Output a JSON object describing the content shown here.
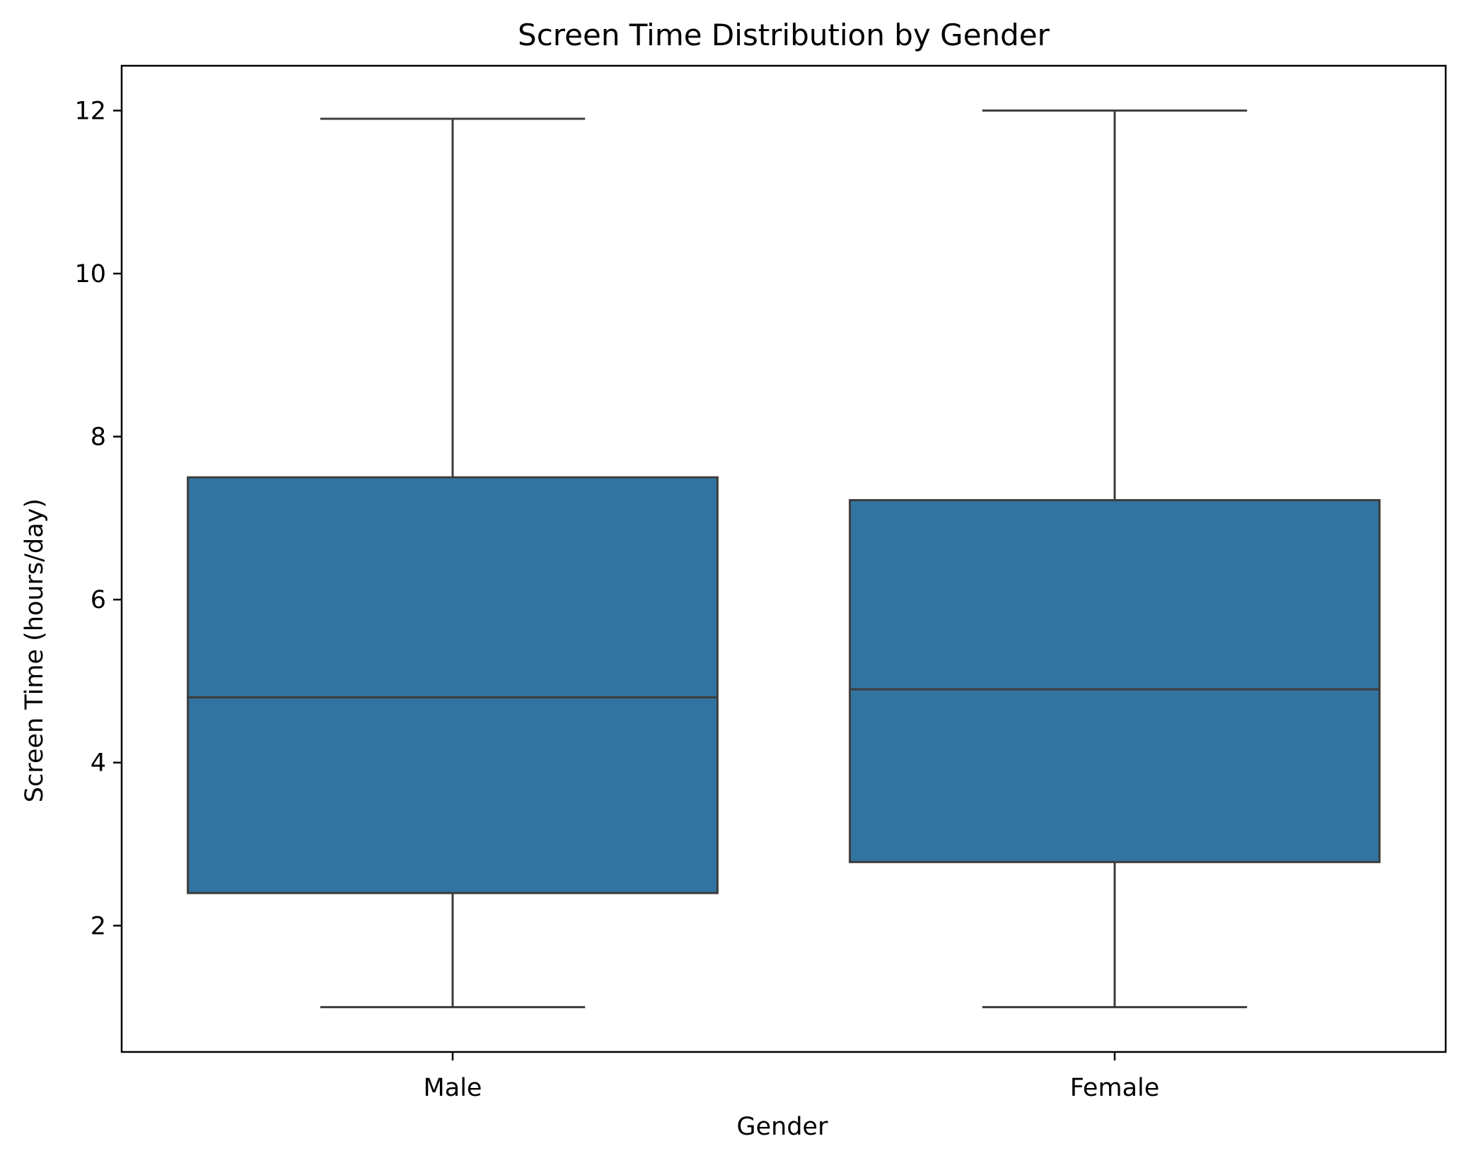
{
  "chart_data": {
    "type": "box",
    "title": "Screen Time Distribution by Gender",
    "xlabel": "Gender",
    "ylabel": "Screen Time (hours/day)",
    "ylim": [
      0.45,
      12.55
    ],
    "yticks": [
      2,
      4,
      6,
      8,
      10,
      12
    ],
    "grid": false,
    "categories": [
      "Male",
      "Female"
    ],
    "boxes": [
      {
        "category": "Male",
        "min": 1.0,
        "q1": 2.4,
        "median": 4.8,
        "q3": 7.5,
        "max": 11.9
      },
      {
        "category": "Female",
        "min": 1.0,
        "q1": 2.78,
        "median": 4.9,
        "q3": 7.22,
        "max": 12.0
      }
    ],
    "box_color": "#3274a1",
    "line_color": "#3d3d3d"
  }
}
